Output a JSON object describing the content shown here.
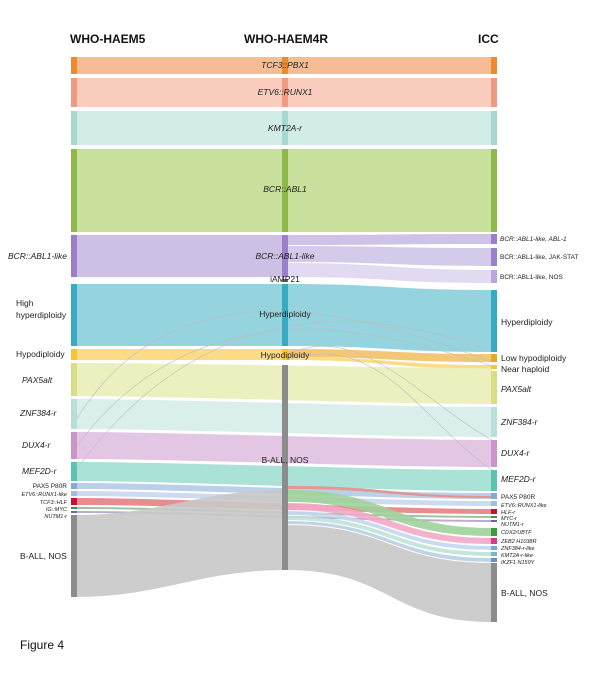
{
  "headers": {
    "left": "WHO-HAEM5",
    "middle": "WHO-HAEM4R",
    "right": "ICC"
  },
  "left_labels": {
    "bcr_abl1_like": "BCR::ABL1-like",
    "high_hyper_1": "High",
    "high_hyper_2": "hyperdiploidy",
    "hypodiploidy": "Hypodiploidy",
    "pax5alt": "PAX5alt",
    "znf384": "ZNF384-r",
    "dux4": "DUX4-r",
    "mef2d": "MEF2D-r",
    "pax5_p80r": "PAX5 P80R",
    "etv6_runx1_like": "ETV6::RUNX1-like",
    "tcf3_hlf": "TCF3::HLF",
    "ig_myc": "IG::MYC",
    "nutm1": "NUTM1-r",
    "ball_nos": "B-ALL, NOS"
  },
  "center_labels": {
    "tcf3_pbx1": "TCF3::PBX1",
    "etv6_runx1": "ETV6::RUNX1",
    "kmt2a": "KMT2A-r",
    "bcr_abl1": "BCR::ABL1",
    "bcr_abl1_like": "BCR::ABL1-like",
    "iamp21": "iAMP21",
    "hyperdiploidy": "Hyperdiploidy",
    "hypodiploidy": "Hypodiploidy",
    "ball_nos": "B-ALL, NOS"
  },
  "right_labels": {
    "abl1": "BCR::ABL1-like, ABL-1",
    "jakstat": "BCR::ABL1-like, JAK-STAT",
    "bcr_nos": "BCR::ABL1-like, NOS",
    "hyperdiploidy": "Hyperdiploidy",
    "low_hypo": "Low hypodiploidy",
    "near_haploid": "Near haploid",
    "pax5alt": "PAX5alt",
    "znf384": "ZNF384-r",
    "dux4": "DUX4-r",
    "mef2d": "MEF2D-r",
    "pax5_p80r": "PAX5 P80R",
    "etv6_runx1_like": "ETV6::RUNX1-like",
    "hlf": "HLF-r",
    "myc": "MYC-r",
    "nutm1": "NUTM1-r",
    "cdx2": "CDX2/UBTF",
    "zeb2": "ZEB2 H1038R",
    "znf384_like": "ZNF384-r-like",
    "kmt2a_like": "KMT2A-r-like",
    "ikzf1": "IKZF1 N159Y",
    "ball_nos": "B-ALL, NOS"
  },
  "caption": "Figure 4",
  "colors": {
    "tcf3_pbx1": "#f4b183",
    "etv6_runx1": "#f8c3b1",
    "kmt2a": "#cdeae5",
    "bcr_abl1": "#c5de97",
    "bcr_like": "#c9bde3",
    "hyper": "#8fd1dc",
    "hypo": "#fbd97f",
    "pax5alt": "#eaeeb8",
    "znf384": "#d8eeea",
    "dux4": "#e2c2e3",
    "mef2d": "#a6e0d5",
    "nos": "#c8c8c8",
    "node_gray": "#8c8c8c"
  }
}
